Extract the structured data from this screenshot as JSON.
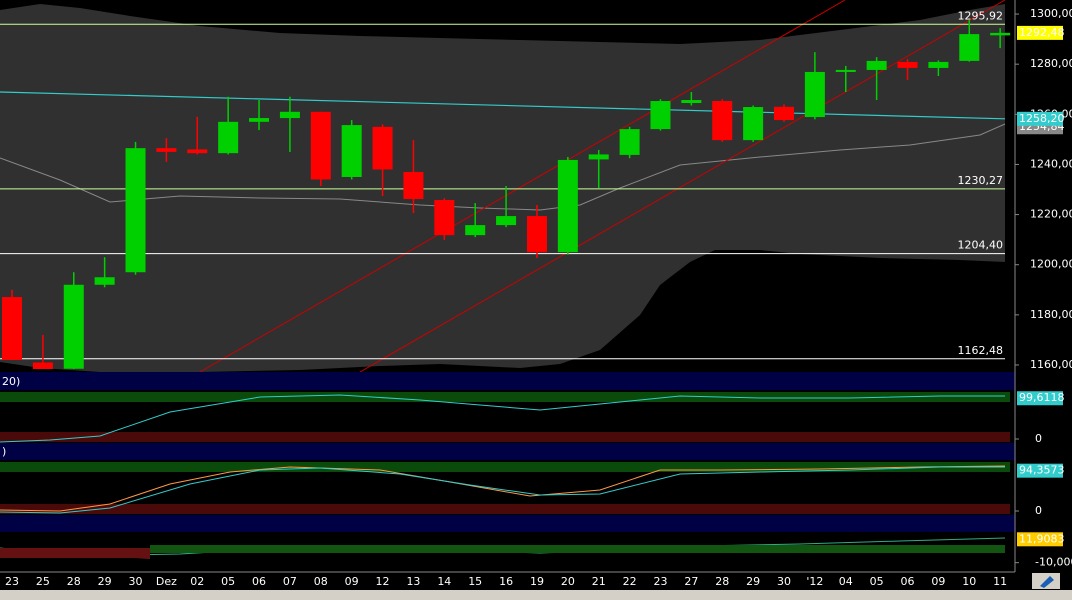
{
  "chart_data": {
    "type": "candlestick",
    "categories": [
      "23",
      "25",
      "28",
      "29",
      "30",
      "Dez",
      "02",
      "05",
      "06",
      "07",
      "08",
      "09",
      "12",
      "13",
      "14",
      "15",
      "16",
      "19",
      "20",
      "21",
      "22",
      "23",
      "27",
      "28",
      "29",
      "30",
      "'12",
      "04",
      "05",
      "06",
      "09",
      "10",
      "11"
    ],
    "open": [
      1187.1,
      1161,
      1158.5,
      1192,
      1197,
      1246.5,
      1246,
      1244.5,
      1257,
      1258.5,
      1261,
      1235,
      1255,
      1237,
      1225.8,
      1211.8,
      1215.8,
      1219.4,
      1205,
      1242,
      1243.8,
      1254.1,
      1264.5,
      1265.3,
      1249.7,
      1263,
      1258.9,
      1276.9,
      1277.7,
      1280.9,
      1278.5,
      1281.3,
      1291.5
    ],
    "high": [
      1190,
      1172,
      1197,
      1203,
      1249,
      1250.5,
      1259,
      1267,
      1265.7,
      1267,
      1261,
      1257.7,
      1256,
      1249.7,
      1226.5,
      1224.6,
      1231.4,
      1223.8,
      1243,
      1245.8,
      1255,
      1266,
      1268.9,
      1266,
      1263.5,
      1264,
      1284.8,
      1279.3,
      1282.8,
      1282,
      1281.5,
      1297.6,
      1294.4
    ],
    "low": [
      1162,
      1158.4,
      1158.4,
      1191,
      1196,
      1241,
      1244,
      1244,
      1253.7,
      1245,
      1231.4,
      1234,
      1227.4,
      1220.6,
      1209.9,
      1211,
      1215,
      1202.7,
      1204,
      1230.6,
      1242.5,
      1253.5,
      1263.5,
      1249,
      1249,
      1257,
      1258,
      1268.9,
      1265.7,
      1273.7,
      1275.3,
      1281,
      1286.4
    ],
    "close": [
      1162,
      1158.4,
      1192,
      1195,
      1246.5,
      1245,
      1244.5,
      1257,
      1258.5,
      1261,
      1234,
      1255.7,
      1238,
      1226.2,
      1211.8,
      1215.8,
      1219.4,
      1205,
      1241.8,
      1244,
      1254.1,
      1265.3,
      1265.7,
      1249.7,
      1262.9,
      1257.7,
      1276.9,
      1277.7,
      1281.3,
      1278.5,
      1280.9,
      1292,
      1292.48
    ],
    "up_color": "#00d000",
    "down_color": "#ff0000",
    "ylim": [
      1157.2,
      1305.6
    ],
    "yticks": [
      {
        "value": 1160,
        "label": "1160,00"
      },
      {
        "value": 1180,
        "label": "1180,00"
      },
      {
        "value": 1200,
        "label": "1200,00"
      },
      {
        "value": 1220,
        "label": "1220,00"
      },
      {
        "value": 1240,
        "label": "1240,00"
      },
      {
        "value": 1260,
        "label": "1260,00"
      },
      {
        "value": 1280,
        "label": "1280,00"
      },
      {
        "value": 1300,
        "label": "1300,00"
      }
    ],
    "levels": [
      {
        "value": 1295.92,
        "label": "1295,92",
        "color": "#ccff99"
      },
      {
        "value": 1230.27,
        "label": "1230,27",
        "color": "#ccff99"
      },
      {
        "value": 1204.4,
        "label": "1204,40",
        "color": "#ffffff"
      },
      {
        "value": 1162.48,
        "label": "1162,48",
        "color": "#ffffff"
      }
    ],
    "last_price": {
      "value": 1292.48,
      "label": "1292,48"
    },
    "ma": {
      "start": 1268.9,
      "last": {
        "value": 1258.2,
        "label": "1258,20"
      },
      "color": "#33cccc"
    },
    "band_mid": {
      "value": 1254.84,
      "label": "1254,84"
    }
  },
  "panels": [
    {
      "title": "20)",
      "last": {
        "value": 99.6118,
        "label": "99,6118"
      },
      "ticks": [
        0
      ]
    },
    {
      "title": ")",
      "last": {
        "value": 94.3573,
        "label": "94,3573"
      },
      "ticks": [
        0
      ]
    },
    {
      "last": {
        "value": 11.9083,
        "label": "11,9083"
      },
      "ticks": [
        {
          "value": -10,
          "label": "-10,0000"
        }
      ]
    }
  ]
}
